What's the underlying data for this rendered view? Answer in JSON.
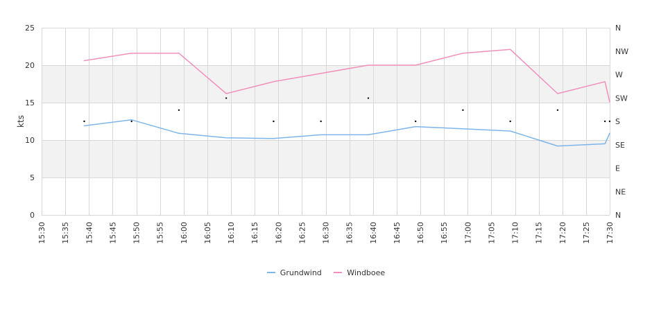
{
  "chart_data": {
    "type": "line",
    "title": "",
    "ylabel": "kts",
    "ylim": [
      0,
      25
    ],
    "y_ticks": [
      "0",
      "5",
      "10",
      "15",
      "20",
      "25"
    ],
    "x_ticks": [
      "15:30",
      "15:35",
      "15:40",
      "15:45",
      "15:50",
      "15:55",
      "16:00",
      "16:05",
      "16:10",
      "16:15",
      "16:20",
      "16:25",
      "16:30",
      "16:35",
      "16:40",
      "16:45",
      "16:50",
      "16:55",
      "17:00",
      "17:05",
      "17:10",
      "17:15",
      "17:20",
      "17:25",
      "17:30"
    ],
    "y2_ticks": [
      "N",
      "NE",
      "E",
      "SE",
      "S",
      "SW",
      "W",
      "NW",
      "N"
    ],
    "x": [
      "15:39",
      "15:49",
      "15:59",
      "16:09",
      "16:19",
      "16:29",
      "16:39",
      "16:49",
      "16:59",
      "17:09",
      "17:19",
      "17:29",
      "17:30"
    ],
    "series": [
      {
        "name": "Grundwind",
        "color": "#7cb5ec",
        "values": [
          11.9,
          12.7,
          10.9,
          10.3,
          10.2,
          10.7,
          10.7,
          11.8,
          11.5,
          11.2,
          9.2,
          9.5,
          10.9
        ]
      },
      {
        "name": "Windboee",
        "color": "#f28fbc",
        "values": [
          20.6,
          21.6,
          21.6,
          16.2,
          17.8,
          18.9,
          20.0,
          20.0,
          21.6,
          22.1,
          16.2,
          17.8,
          15.1
        ]
      }
    ],
    "direction": {
      "color": "#000000",
      "x": [
        "15:39",
        "15:49",
        "15:59",
        "16:09",
        "16:19",
        "16:29",
        "16:39",
        "16:49",
        "16:59",
        "17:09",
        "17:19",
        "17:29",
        "17:30"
      ],
      "values": [
        12.5,
        12.5,
        14.0,
        15.6,
        12.5,
        12.5,
        15.6,
        12.5,
        14.0,
        12.5,
        14.0,
        12.5,
        12.5
      ]
    },
    "bands": [
      [
        5,
        10
      ],
      [
        15,
        20
      ]
    ],
    "band_color": "#f2f2f2",
    "grid": true,
    "legend": "bottom-center"
  }
}
